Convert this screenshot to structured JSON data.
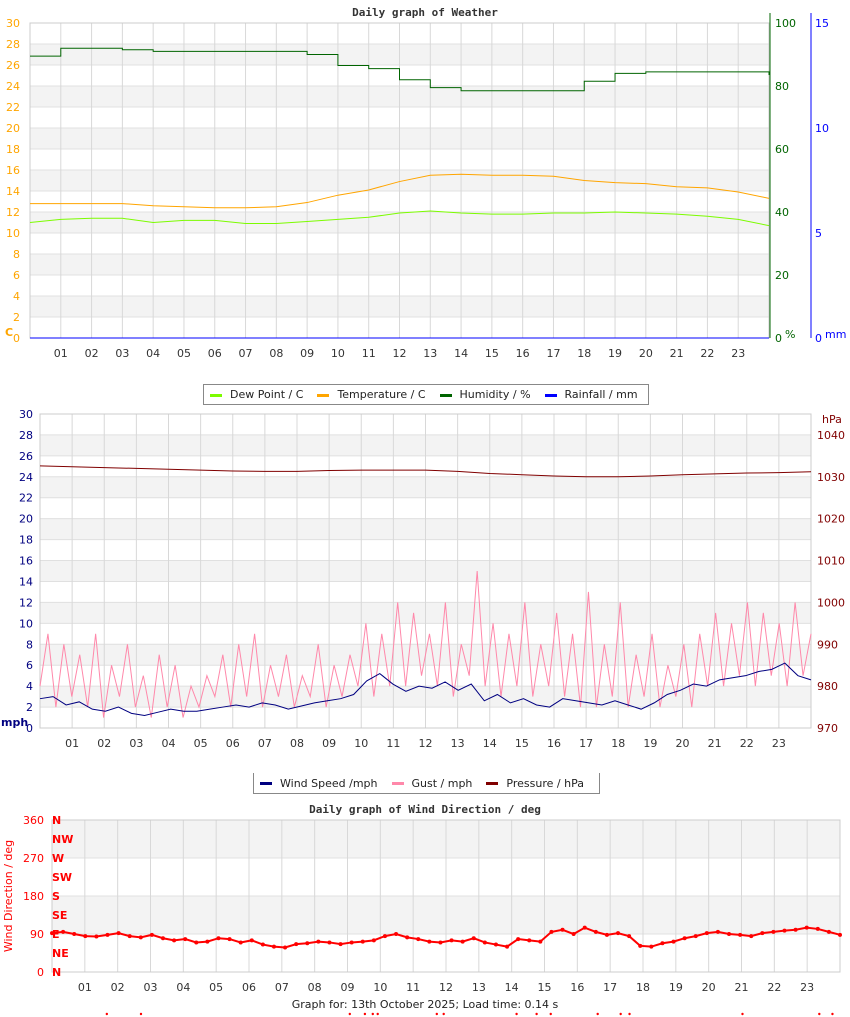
{
  "footer": "Graph for: 13th October 2025; Load time: 0.14 s",
  "legend1": [
    {
      "label": "Dew Point / C",
      "color": "#7cfc00"
    },
    {
      "label": "Temperature / C",
      "color": "#ffa500"
    },
    {
      "label": "Humidity / %",
      "color": "#006400"
    },
    {
      "label": "Rainfall / mm",
      "color": "#0000ff"
    }
  ],
  "legend2": [
    {
      "label": "Wind Speed /mph",
      "color": "#000080"
    },
    {
      "label": "Gust / mph",
      "color": "#ff88aa"
    },
    {
      "label": "Pressure / hPa",
      "color": "#800000"
    }
  ],
  "chart_data": [
    {
      "type": "line",
      "title": "Daily graph of Weather",
      "x_ticks": [
        "01",
        "02",
        "03",
        "04",
        "05",
        "06",
        "07",
        "08",
        "09",
        "10",
        "11",
        "12",
        "13",
        "14",
        "15",
        "16",
        "17",
        "18",
        "19",
        "20",
        "21",
        "22",
        "23"
      ],
      "xlim": [
        0,
        24
      ],
      "axes": [
        {
          "side": "left",
          "unit": "C",
          "color": "#ffa500",
          "ylim": [
            0,
            30
          ],
          "ticks": [
            0,
            2,
            4,
            6,
            8,
            10,
            12,
            14,
            16,
            18,
            20,
            22,
            24,
            26,
            28,
            30
          ]
        },
        {
          "side": "right",
          "unit": "%",
          "color": "#006400",
          "ylim": [
            0,
            100
          ],
          "ticks": [
            0,
            20,
            40,
            60,
            80,
            100
          ]
        },
        {
          "side": "right2",
          "unit": "mm",
          "color": "#0000ff",
          "ylim": [
            0,
            15
          ],
          "ticks": [
            0,
            5,
            10,
            15
          ]
        }
      ],
      "series": [
        {
          "name": "Humidity / %",
          "axis": 1,
          "color": "#006400",
          "step": true,
          "values": [
            89.5,
            92,
            92,
            91.5,
            91,
            91,
            91,
            91,
            91,
            90,
            86.5,
            85.5,
            82,
            79.5,
            78.5,
            78.5,
            78.5,
            78.5,
            81.5,
            84,
            84.5,
            84.5,
            84.5,
            84.5,
            83.5
          ]
        },
        {
          "name": "Temperature / C",
          "axis": 0,
          "color": "#ffa500",
          "values": [
            12.8,
            12.8,
            12.8,
            12.8,
            12.6,
            12.5,
            12.4,
            12.4,
            12.5,
            12.9,
            13.6,
            14.1,
            14.9,
            15.5,
            15.6,
            15.5,
            15.5,
            15.4,
            15.0,
            14.8,
            14.7,
            14.4,
            14.3,
            13.9,
            13.3
          ]
        },
        {
          "name": "Dew Point / C",
          "axis": 0,
          "color": "#7cfc00",
          "values": [
            11.0,
            11.3,
            11.4,
            11.4,
            11.0,
            11.2,
            11.2,
            10.9,
            10.9,
            11.1,
            11.3,
            11.5,
            11.9,
            12.1,
            11.9,
            11.8,
            11.8,
            11.9,
            11.9,
            12.0,
            11.9,
            11.8,
            11.6,
            11.3,
            10.7
          ]
        },
        {
          "name": "Rainfall / mm",
          "axis": 2,
          "color": "#0000ff",
          "values": [
            0,
            0,
            0,
            0,
            0,
            0,
            0,
            0,
            0,
            0,
            0,
            0,
            0,
            0,
            0,
            0,
            0,
            0,
            0,
            0,
            0,
            0,
            0,
            0,
            0
          ]
        }
      ]
    },
    {
      "type": "line",
      "title": "",
      "x_ticks": [
        "01",
        "02",
        "03",
        "04",
        "05",
        "06",
        "07",
        "08",
        "09",
        "10",
        "11",
        "12",
        "13",
        "14",
        "15",
        "16",
        "17",
        "18",
        "19",
        "20",
        "21",
        "22",
        "23"
      ],
      "xlim": [
        0,
        24
      ],
      "axes": [
        {
          "side": "left",
          "unit": "mph",
          "color": "#000080",
          "ylim": [
            0,
            30
          ],
          "ticks": [
            0,
            2,
            4,
            6,
            8,
            10,
            12,
            14,
            16,
            18,
            20,
            22,
            24,
            26,
            28,
            30
          ]
        },
        {
          "side": "right",
          "unit": "hPa",
          "color": "#800000",
          "ylim": [
            970,
            1045
          ],
          "ticks": [
            970,
            980,
            990,
            1000,
            1010,
            1020,
            1030,
            1040
          ]
        }
      ],
      "series": [
        {
          "name": "Gust / mph",
          "axis": 0,
          "color": "#ff88aa",
          "values": [
            4,
            9,
            2,
            8,
            3,
            7,
            2,
            9,
            1,
            6,
            3,
            8,
            2,
            5,
            1,
            7,
            2,
            6,
            1,
            4,
            2,
            5,
            3,
            7,
            2,
            8,
            3,
            9,
            2,
            6,
            3,
            7,
            2,
            5,
            3,
            8,
            2,
            6,
            3,
            7,
            4,
            10,
            3,
            9,
            4,
            12,
            4,
            11,
            5,
            9,
            4,
            12,
            3,
            8,
            5,
            15,
            4,
            10,
            3,
            9,
            4,
            12,
            3,
            8,
            4,
            11,
            3,
            9,
            2,
            13,
            2,
            8,
            3,
            12,
            2,
            7,
            3,
            9,
            2,
            6,
            3,
            8,
            2,
            9,
            4,
            11,
            4,
            10,
            5,
            12,
            4,
            11,
            5,
            10,
            4,
            12,
            5,
            9
          ]
        },
        {
          "name": "Wind Speed /mph",
          "axis": 0,
          "color": "#000080",
          "values": [
            2.8,
            3.0,
            2.2,
            2.5,
            1.8,
            1.6,
            2.0,
            1.4,
            1.2,
            1.5,
            1.8,
            1.6,
            1.6,
            1.8,
            2.0,
            2.2,
            2.0,
            2.4,
            2.2,
            1.8,
            2.1,
            2.4,
            2.6,
            2.8,
            3.2,
            4.5,
            5.2,
            4.2,
            3.5,
            4.0,
            3.8,
            4.4,
            3.6,
            4.2,
            2.6,
            3.2,
            2.4,
            2.8,
            2.2,
            2.0,
            2.8,
            2.6,
            2.4,
            2.2,
            2.6,
            2.2,
            1.8,
            2.4,
            3.2,
            3.6,
            4.2,
            4.0,
            4.6,
            4.8,
            5.0,
            5.4,
            5.6,
            6.2,
            5.0,
            4.6
          ]
        },
        {
          "name": "Pressure / hPa",
          "axis": 1,
          "color": "#800000",
          "values": [
            1032.6,
            1032.4,
            1032.2,
            1032.0,
            1031.8,
            1031.6,
            1031.4,
            1031.3,
            1031.3,
            1031.5,
            1031.6,
            1031.6,
            1031.6,
            1031.3,
            1030.8,
            1030.5,
            1030.2,
            1030.0,
            1030.0,
            1030.2,
            1030.5,
            1030.7,
            1030.9,
            1031.0,
            1031.2
          ]
        }
      ]
    },
    {
      "type": "scatter",
      "title": "Daily graph of Wind Direction / deg",
      "ylabel": "Wind Direction / deg",
      "x_ticks": [
        "01",
        "02",
        "03",
        "04",
        "05",
        "06",
        "07",
        "08",
        "09",
        "10",
        "11",
        "12",
        "13",
        "14",
        "15",
        "16",
        "17",
        "18",
        "19",
        "20",
        "21",
        "22",
        "23"
      ],
      "xlim": [
        0,
        24
      ],
      "axes": [
        {
          "side": "left",
          "unit": "",
          "color": "#ff0000",
          "ylim": [
            0,
            360
          ],
          "ticks": [
            0,
            90,
            180,
            270,
            360
          ]
        }
      ],
      "compass": [
        "N",
        "NE",
        "E",
        "SE",
        "S",
        "SW",
        "W",
        "NW",
        "N"
      ],
      "series": [
        {
          "name": "Wind Direction / deg",
          "axis": 0,
          "color": "#ff0000",
          "values": [
            92,
            95,
            90,
            85,
            84,
            88,
            92,
            85,
            82,
            88,
            80,
            75,
            78,
            70,
            72,
            80,
            78,
            70,
            75,
            65,
            60,
            58,
            66,
            68,
            72,
            70,
            66,
            70,
            72,
            75,
            85,
            90,
            82,
            78,
            72,
            70,
            75,
            72,
            80,
            70,
            65,
            60,
            78,
            75,
            72,
            95,
            100,
            90,
            105,
            95,
            88,
            92,
            85,
            62,
            60,
            68,
            72,
            80,
            85,
            92,
            95,
            90,
            88,
            85,
            92,
            95,
            98,
            100,
            105,
            102,
            95,
            88
          ]
        }
      ],
      "below_range_hours": [
        1.67,
        2.71,
        9.07,
        9.53,
        9.77,
        9.92,
        11.72,
        11.93,
        14.15,
        14.76,
        15.19,
        16.62,
        17.32,
        17.59,
        21.03,
        23.37,
        23.77
      ]
    }
  ]
}
